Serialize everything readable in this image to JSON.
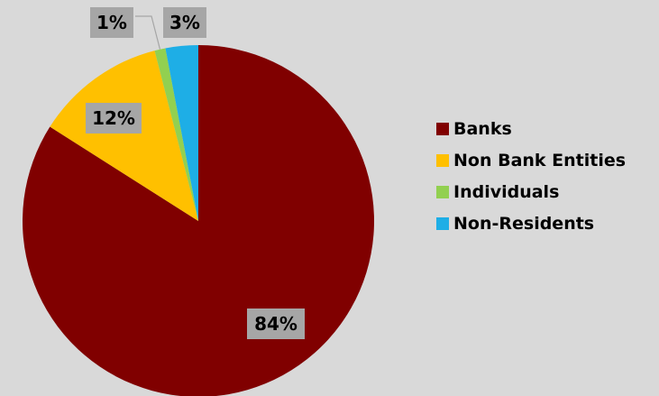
{
  "chart_data": {
    "type": "pie",
    "title": "",
    "categories": [
      "Banks",
      "Non Bank Entities",
      "Individuals",
      "Non-Residents"
    ],
    "values": [
      84,
      12,
      1,
      3
    ],
    "value_labels": [
      "84%",
      "12%",
      "1%",
      "3%"
    ],
    "colors": [
      "#800000",
      "#ffc000",
      "#92d050",
      "#1eaee6"
    ],
    "legend": {
      "placement": "right",
      "items": [
        {
          "label": "Banks",
          "color": "#800000"
        },
        {
          "label": "Non Bank Entities",
          "color": "#ffc000"
        },
        {
          "label": "Individuals",
          "color": "#92d050"
        },
        {
          "label": "Non-Residents",
          "color": "#1eaee6"
        }
      ]
    }
  }
}
